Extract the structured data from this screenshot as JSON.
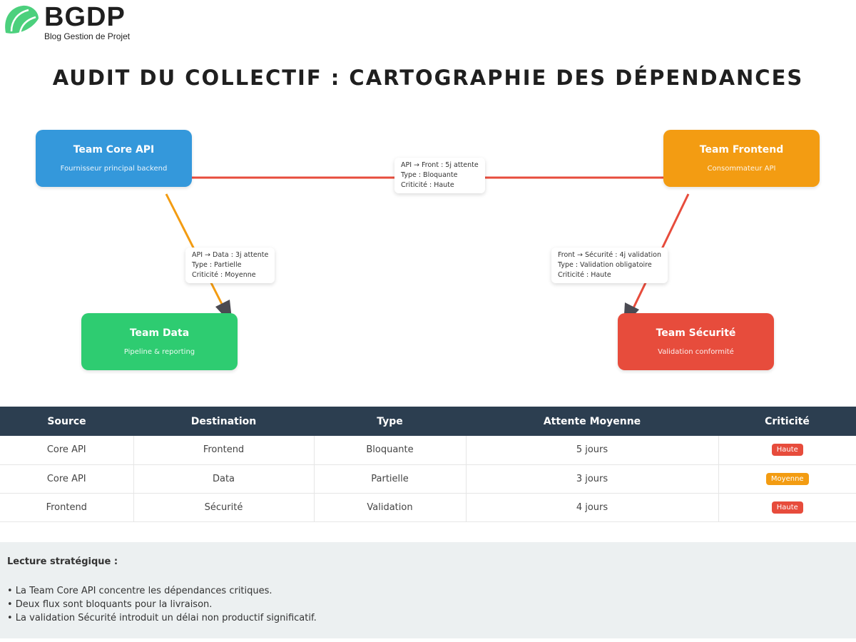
{
  "logo": {
    "brand": "BGDP",
    "tagline": "Blog Gestion de Projet",
    "color": "#4cd07d"
  },
  "title": "AUDIT DU COLLECTIF : CARTOGRAPHIE DES DÉPENDANCES",
  "teams": [
    {
      "name": "Team Core API",
      "desc": "Fournisseur principal backend",
      "color": "#3498db"
    },
    {
      "name": "Team Frontend",
      "desc": "Consommateur API",
      "color": "#f39c12"
    },
    {
      "name": "Team Data",
      "desc": "Pipeline & reporting",
      "color": "#2ecc71"
    },
    {
      "name": "Team Sécurité",
      "desc": "Validation conformité",
      "color": "#e74c3c"
    }
  ],
  "links": [
    {
      "line1": "API → Front : 5j attente",
      "line2": "Type : Bloquante",
      "line3": "Criticité : Haute",
      "color": "#e74c3c"
    },
    {
      "line1": "API → Data : 3j attente",
      "line2": "Type : Partielle",
      "line3": "Criticité : Moyenne",
      "color": "#f39c12"
    },
    {
      "line1": "Front → Sécurité : 4j validation",
      "line2": "Type : Validation obligatoire",
      "line3": "Criticité : Haute",
      "color": "#e74c3c"
    }
  ],
  "table": {
    "headers": [
      "Source",
      "Destination",
      "Type",
      "Attente Moyenne",
      "Criticité"
    ],
    "rows": [
      [
        "Core API",
        "Frontend",
        "Bloquante",
        "5 jours",
        "Haute"
      ],
      [
        "Core API",
        "Data",
        "Partielle",
        "3 jours",
        "Moyenne"
      ],
      [
        "Frontend",
        "Sécurité",
        "Validation",
        "4 jours",
        "Haute"
      ]
    ],
    "badge_colors": {
      "Haute": "#e74c3c",
      "Moyenne": "#f39c12"
    }
  },
  "summary": {
    "heading": "Lecture stratégique :",
    "points": [
      "• La Team Core API concentre les dépendances critiques.",
      "• Deux flux sont bloquants pour la livraison.",
      "• La validation Sécurité introduit un délai non productif significatif."
    ]
  }
}
